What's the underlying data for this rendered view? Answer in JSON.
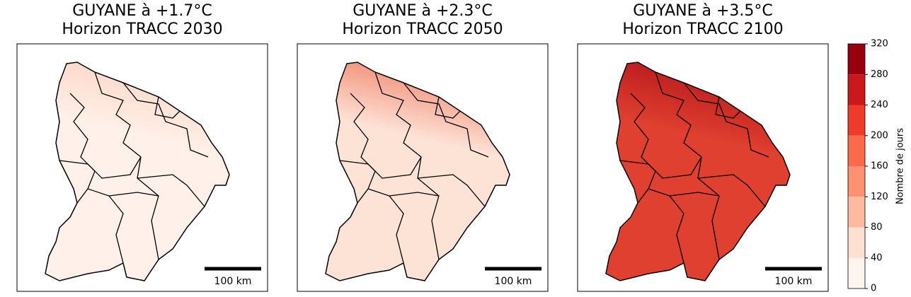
{
  "panels": [
    {
      "title": [
        "GUYANE à +1.7°C",
        "Horizon TRACC 2030"
      ],
      "colors": [
        "#fcd3c1",
        "#fff1ea"
      ],
      "scale_label": "100 km"
    },
    {
      "title": [
        "GUYANE à +2.3°C",
        "Horizon TRACC 2050"
      ],
      "colors": [
        "#f08066",
        "#fde2d6"
      ],
      "scale_label": "100 km"
    },
    {
      "title": [
        "GUYANE à +3.5°C",
        "Horizon TRACC 2100"
      ],
      "colors": [
        "#b3141a",
        "#e0402f"
      ],
      "scale_label": "100 km"
    }
  ],
  "colorbar": {
    "label": "Nombre de jours",
    "lim": [
      0,
      320
    ],
    "ticks": [
      0,
      40,
      80,
      120,
      160,
      200,
      240,
      280,
      320
    ],
    "colors": [
      "#fff5f0",
      "#fee0d2",
      "#fcbba1",
      "#fc9272",
      "#fb6a4a",
      "#ef3b2c",
      "#cb181d",
      "#99000d"
    ]
  }
}
